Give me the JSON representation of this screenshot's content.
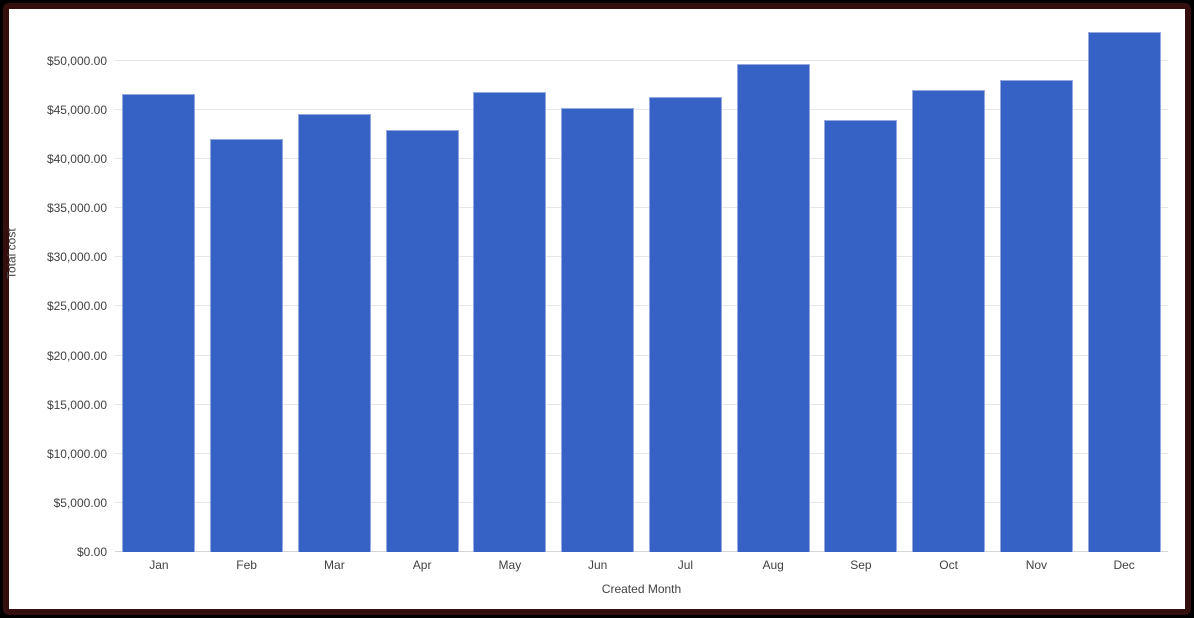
{
  "frame": {
    "outer_color": "#000000",
    "border_color": "#350e0e",
    "background": "#ffffff"
  },
  "chart_data": {
    "type": "bar",
    "title": "",
    "xlabel": "Created Month",
    "ylabel": "Total cost",
    "categories": [
      "Jan",
      "Feb",
      "Mar",
      "Apr",
      "May",
      "Jun",
      "Jul",
      "Aug",
      "Sep",
      "Oct",
      "Nov",
      "Dec"
    ],
    "series": [
      {
        "name": "Total cost",
        "values": [
          46600,
          42050,
          44650,
          43000,
          46800,
          45250,
          46300,
          49700,
          44000,
          47050,
          48050,
          52950
        ]
      }
    ],
    "y_ticks": [
      0,
      5000,
      10000,
      15000,
      20000,
      25000,
      30000,
      35000,
      40000,
      45000,
      50000
    ],
    "y_tick_labels": [
      "$0.00",
      "$5,000.00",
      "$10,000.00",
      "$15,000.00",
      "$20,000.00",
      "$25,000.00",
      "$30,000.00",
      "$35,000.00",
      "$40,000.00",
      "$45,000.00",
      "$50,000.00"
    ],
    "ylim": [
      0,
      54150
    ],
    "grid": true,
    "legend": "none",
    "bar_color": "#3661c5",
    "bar_border_color": "#94aade",
    "gridline_color": "#e6e6e6",
    "axis_text_color": "#424242"
  }
}
